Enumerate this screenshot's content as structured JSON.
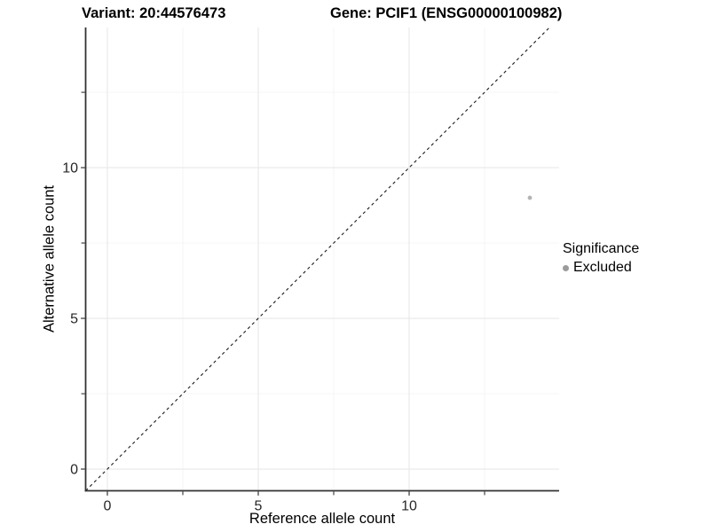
{
  "titles": {
    "variant": "Variant: 20:44576473",
    "gene": "Gene: PCIF1 (ENSG00000100982)"
  },
  "chart_data": {
    "type": "scatter",
    "title_left": "Variant: 20:44576473",
    "title_right": "Gene: PCIF1 (ENSG00000100982)",
    "xlabel": "Reference allele count",
    "ylabel": "Alternative allele count",
    "xlim": [
      -0.72,
      14.97
    ],
    "ylim": [
      -0.72,
      14.65
    ],
    "x_major_ticks": [
      0,
      5,
      10
    ],
    "x_minor_ticks": [
      2.5,
      7.5,
      12.5
    ],
    "y_major_ticks": [
      0,
      5,
      10
    ],
    "y_minor_ticks": [
      2.5,
      7.5,
      12.5
    ],
    "grid": true,
    "legend_position": "right",
    "reference_line": {
      "kind": "identity",
      "style": "dashed",
      "color": "#1a1a1a"
    },
    "series": [
      {
        "name": "Excluded",
        "color": "#b3b3b3",
        "points": [
          {
            "x": 14,
            "y": 9
          }
        ]
      }
    ],
    "legend": {
      "title": "Significance",
      "items": [
        {
          "label": "Excluded",
          "color": "#9b9b9b"
        }
      ]
    },
    "style": {
      "axis_color": "#333333",
      "tick_color": "#333333",
      "tick_label_color": "#262626",
      "grid_major_color": "#e8e8e8",
      "grid_minor_color": "#f4f4f4",
      "point_color": "#b3b3b3",
      "legend_key_color": "#9b9b9b"
    }
  }
}
